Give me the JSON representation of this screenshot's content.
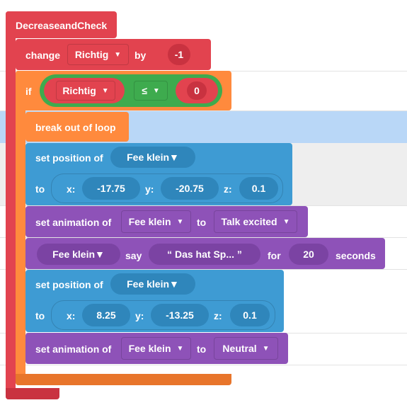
{
  "colors": {
    "function_red": "#e2434f",
    "control_orange": "#ff8a3d",
    "motion_blue": "#3e9bd3",
    "looks_purple": "#8e52b8",
    "operator_green": "#3eab4e",
    "highlight_row": "#b9d7f7"
  },
  "function": {
    "name": "DecreaseandCheck"
  },
  "change_block": {
    "label": "change",
    "variable": "Richtig",
    "by_label": "by",
    "value": "-1"
  },
  "if_block": {
    "label": "if",
    "left_var": "Richtig",
    "operator": "≤",
    "right_value": "0"
  },
  "break_block": {
    "label": "break out of loop"
  },
  "set_position_1": {
    "label": "set position of",
    "target": "Fee klein",
    "to_label": "to",
    "x_label": "x:",
    "x": "-17.75",
    "y_label": "y:",
    "y": "-20.75",
    "z_label": "z:",
    "z": "0.1"
  },
  "set_animation_1": {
    "label": "set animation of",
    "target": "Fee klein",
    "to_label": "to",
    "animation": "Talk excited"
  },
  "say_block": {
    "target": "Fee klein",
    "say_label": "say",
    "text": "“ Das hat Sp... ”",
    "for_label": "for",
    "duration": "20",
    "unit_label": "seconds"
  },
  "set_position_2": {
    "label": "set position of",
    "target": "Fee klein",
    "to_label": "to",
    "x_label": "x:",
    "x": "8.25",
    "y_label": "y:",
    "y": "-13.25",
    "z_label": "z:",
    "z": "0.1"
  },
  "set_animation_2": {
    "label": "set animation of",
    "target": "Fee klein",
    "to_label": "to",
    "animation": "Neutral"
  }
}
